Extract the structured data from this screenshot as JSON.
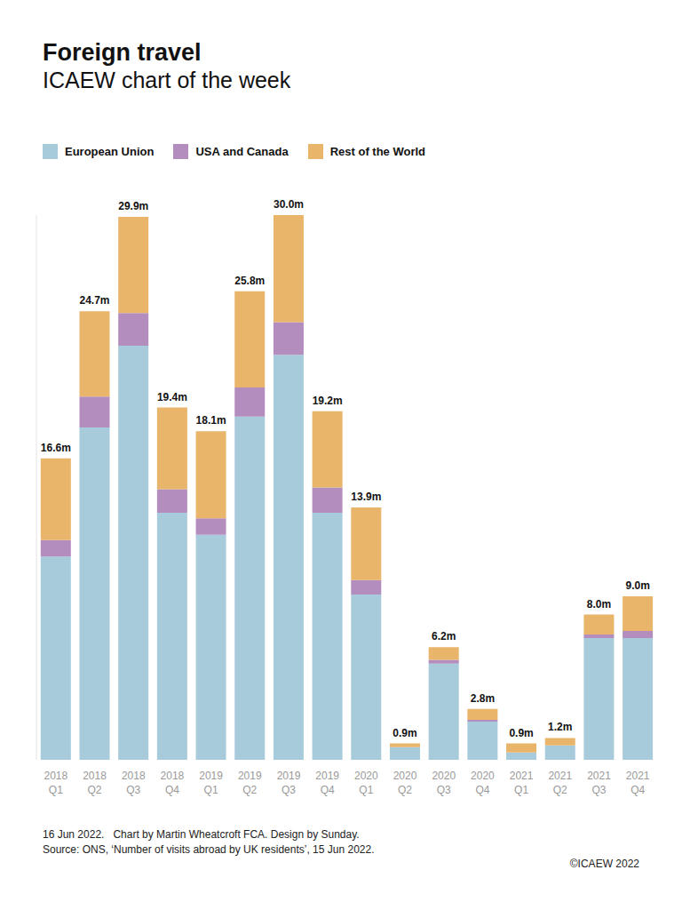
{
  "chart_data": {
    "type": "bar",
    "title": "Foreign travel",
    "subtitle": "ICAEW chart of the week",
    "categories": [
      "2018 Q1",
      "2018 Q2",
      "2018 Q3",
      "2018 Q4",
      "2019 Q1",
      "2019 Q2",
      "2019 Q3",
      "2019 Q4",
      "2020 Q1",
      "2020 Q2",
      "2020 Q3",
      "2020 Q4",
      "2021 Q1",
      "2021 Q2",
      "2021 Q3",
      "2021 Q4"
    ],
    "series": [
      {
        "name": "European Union",
        "color": "#a7cbdb",
        "values": [
          11.2,
          18.3,
          22.8,
          13.6,
          12.4,
          18.9,
          22.3,
          13.6,
          9.1,
          0.7,
          5.3,
          2.1,
          0.4,
          0.8,
          6.7,
          6.7
        ]
      },
      {
        "name": "USA and Canada",
        "color": "#b48dbf",
        "values": [
          0.9,
          1.7,
          1.8,
          1.3,
          0.9,
          1.6,
          1.8,
          1.4,
          0.8,
          0.0,
          0.2,
          0.1,
          0.0,
          0.0,
          0.2,
          0.4
        ]
      },
      {
        "name": "Rest of the World",
        "color": "#e8b56a",
        "values": [
          4.5,
          4.7,
          5.3,
          4.5,
          4.8,
          5.3,
          5.9,
          4.2,
          4.0,
          0.2,
          0.7,
          0.6,
          0.5,
          0.4,
          1.1,
          1.9
        ]
      }
    ],
    "totals": [
      16.6,
      24.7,
      29.9,
      19.4,
      18.1,
      25.8,
      30.0,
      19.2,
      13.9,
      0.9,
      6.2,
      2.8,
      0.9,
      1.2,
      8.0,
      9.0
    ],
    "total_labels": [
      "16.6m",
      "24.7m",
      "29.9m",
      "19.4m",
      "18.1m",
      "25.8m",
      "30.0m",
      "19.2m",
      "13.9m",
      "0.9m",
      "6.2m",
      "2.8m",
      "0.9m",
      "1.2m",
      "8.0m",
      "9.0m"
    ],
    "ylim": [
      0,
      30
    ],
    "yticks": [],
    "tick_labels": "x",
    "stacked": true,
    "legend": "top-left",
    "notes": [
      "16 Jun 2022.   Chart by Martin Wheatcroft FCA. Design by Sunday.",
      "Source: ONS, ‘Number of visits abroad by UK residents’, 15 Jun 2022."
    ],
    "copyright": "©ICAEW 2022"
  }
}
